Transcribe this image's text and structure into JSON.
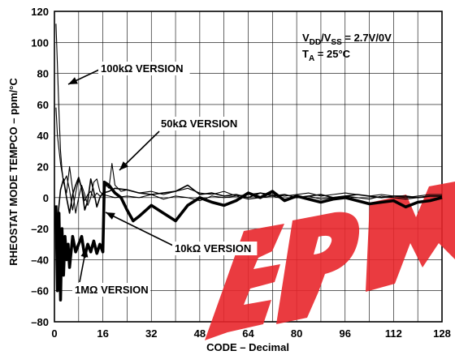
{
  "chart_data": {
    "type": "line",
    "xlabel": "CODE – Decimal",
    "ylabel": "RHEOSTAT MODE TEMPCO – ppm/°C",
    "xlim": [
      0,
      128
    ],
    "ylim": [
      -80,
      120
    ],
    "xticks": [
      "0",
      "16",
      "32",
      "48",
      "64",
      "80",
      "96",
      "112",
      "128"
    ],
    "yticks": [
      "120",
      "100",
      "80",
      "60",
      "40",
      "20",
      "0",
      "–20",
      "–40",
      "–60",
      "–80"
    ],
    "grid": true,
    "conditions": {
      "line1_main": "V",
      "line1_sub1": "DD",
      "line1_mid": "/V",
      "line1_sub2": "SS",
      "line1_tail": " = 2.7V/0V",
      "line2_main": "T",
      "line2_sub": "A",
      "line2_tail": " = 25°C"
    },
    "watermark_color": "#e8262b",
    "series": [
      {
        "name": "100kΩ VERSION",
        "style": "thin",
        "x": [
          0.5,
          1,
          1.5,
          2,
          2.5,
          3,
          4,
          5,
          6,
          7,
          8,
          9,
          10,
          11,
          12,
          13,
          14,
          15,
          16,
          18,
          20,
          24,
          28,
          32,
          36,
          40,
          44,
          48,
          52,
          56,
          60,
          64,
          68,
          72,
          76,
          80,
          84,
          88,
          92,
          96,
          100,
          104,
          108,
          112,
          116,
          120,
          124,
          128
        ],
        "y": [
          112,
          85,
          55,
          30,
          18,
          10,
          14,
          5,
          -8,
          3,
          12,
          6,
          -2,
          2,
          4,
          0,
          3,
          1,
          2,
          1,
          0,
          1,
          0,
          2,
          -1,
          1,
          0,
          -2,
          1,
          0,
          1,
          -1,
          0,
          1,
          -1,
          0,
          1,
          -1,
          0,
          1,
          0,
          -1,
          1,
          0,
          -1,
          0,
          1,
          1
        ]
      },
      {
        "name": "50kΩ VERSION",
        "style": "thin",
        "x": [
          0.5,
          1,
          2,
          3,
          4,
          5,
          6,
          7,
          8,
          9,
          10,
          11,
          12,
          13,
          14,
          15,
          16,
          17,
          18,
          19,
          20,
          22,
          24,
          28,
          32,
          36,
          40,
          44,
          48,
          52,
          56,
          60,
          64,
          68,
          72,
          76,
          80,
          84,
          88,
          92,
          96,
          100,
          104,
          108,
          112,
          116,
          120,
          124,
          128
        ],
        "y": [
          58,
          40,
          22,
          10,
          3,
          20,
          5,
          -10,
          0,
          8,
          2,
          -5,
          0,
          10,
          12,
          4,
          2,
          8,
          6,
          22,
          8,
          4,
          5,
          3,
          4,
          2,
          4,
          6,
          3,
          2,
          4,
          1,
          2,
          3,
          2,
          1,
          2,
          3,
          1,
          2,
          3,
          2,
          1,
          2,
          1,
          0,
          1,
          2,
          2
        ]
      },
      {
        "name": "10kΩ VERSION",
        "style": "medium",
        "x": [
          0.5,
          1,
          2,
          3,
          4,
          5,
          6,
          7,
          8,
          9,
          10,
          11,
          12,
          13,
          14,
          15,
          16,
          18,
          20,
          24,
          28,
          32,
          36,
          40,
          44,
          48,
          52,
          56,
          60,
          64,
          68,
          72,
          76,
          80,
          84,
          88,
          92,
          96,
          100,
          104,
          108,
          112,
          116,
          120,
          124,
          128
        ],
        "y": [
          -8,
          -15,
          5,
          12,
          0,
          -10,
          2,
          8,
          13,
          6,
          -8,
          -2,
          12,
          4,
          -6,
          0,
          3,
          4,
          6,
          5,
          3,
          2,
          3,
          4,
          8,
          2,
          3,
          1,
          2,
          0,
          3,
          1,
          2,
          0,
          1,
          2,
          0,
          1,
          2,
          1,
          0,
          1,
          1,
          0,
          1,
          1
        ]
      },
      {
        "name": "1MΩ VERSION",
        "style": "thick",
        "x": [
          0.5,
          1,
          1.5,
          2,
          2.5,
          3,
          3.5,
          4,
          4.5,
          5,
          6,
          7,
          8,
          9,
          10,
          11,
          12,
          13,
          14,
          15,
          16,
          16.5,
          18,
          20,
          22,
          24,
          26,
          28,
          32,
          36,
          40,
          44,
          48,
          52,
          56,
          60,
          64,
          68,
          72,
          76,
          80,
          84,
          88,
          92,
          96,
          100,
          104,
          108,
          112,
          116,
          120,
          124,
          128
        ],
        "y": [
          -5,
          -60,
          -10,
          -66,
          -20,
          -50,
          -25,
          -40,
          -30,
          -45,
          -25,
          -35,
          -30,
          -25,
          -38,
          -30,
          -35,
          -28,
          -36,
          -30,
          -35,
          10,
          8,
          3,
          0,
          -8,
          -15,
          -12,
          -5,
          -10,
          -15,
          -5,
          0,
          -3,
          -5,
          -2,
          3,
          0,
          4,
          -2,
          1,
          -1,
          -3,
          -1,
          0,
          -2,
          -4,
          -3,
          -2,
          -6,
          -3,
          -2,
          0
        ]
      }
    ],
    "annotations": [
      {
        "text": "100kΩ VERSION",
        "series": 0
      },
      {
        "text": "50kΩ VERSION",
        "series": 1
      },
      {
        "text": "10kΩ VERSION",
        "series": 2
      },
      {
        "text": "1MΩ VERSION",
        "series": 3
      }
    ]
  }
}
